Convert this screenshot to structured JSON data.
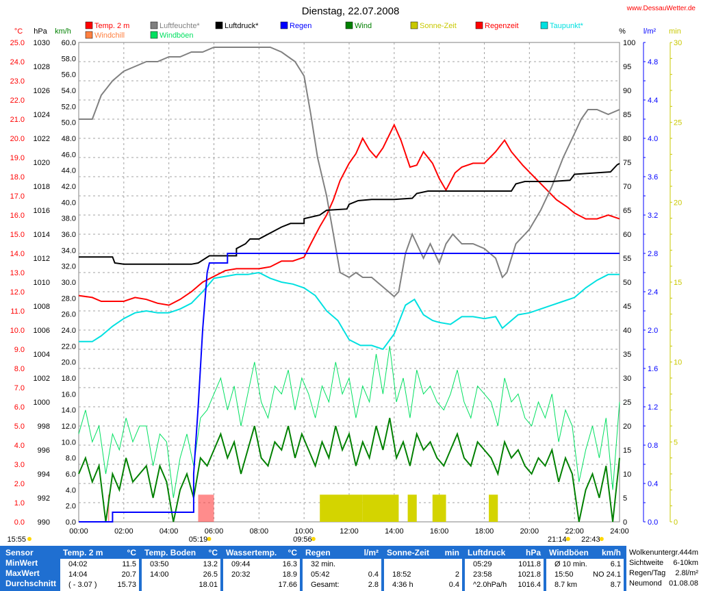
{
  "site": "www.DessauWetter.de",
  "chart_data": {
    "type": "line",
    "title": "Dienstag, 22.07.2008",
    "axes": {
      "temp_c": {
        "label": "°C",
        "min": 0,
        "max": 25,
        "step": 1,
        "color": "#ff0000"
      },
      "hpa": {
        "label": "hPa",
        "min": 990,
        "max": 1030,
        "step": 2,
        "color": "#000000"
      },
      "kmh": {
        "label": "km/h",
        "min": 0,
        "max": 60,
        "step": 2,
        "color": "#008000"
      },
      "pct": {
        "label": "%",
        "min": 0,
        "max": 100,
        "step": 5,
        "color": "#000000"
      },
      "lm2": {
        "label": "l/m²",
        "min": 0,
        "max": 5,
        "step": 0.2,
        "color": "#0000ff"
      },
      "min": {
        "label": "min",
        "min": 0,
        "max": 30,
        "step": 5,
        "color": "#c8c800"
      }
    },
    "x_ticks": [
      "00:00",
      "02:00",
      "04:00",
      "06:00",
      "08:00",
      "10:00",
      "12:00",
      "14:00",
      "16:00",
      "18:00",
      "20:00",
      "22:00",
      "24:00"
    ],
    "legend": [
      {
        "name": "Temp. 2 m",
        "color": "#ff0000"
      },
      {
        "name": "Luftfeuchte*",
        "color": "#808080"
      },
      {
        "name": "Luftdruck*",
        "color": "#000000"
      },
      {
        "name": "Regen",
        "color": "#0000ff"
      },
      {
        "name": "Wind",
        "color": "#008000"
      },
      {
        "name": "Sonne-Zeit",
        "color": "#c8c800"
      },
      {
        "name": "Regenzeit",
        "color": "#ff0000"
      },
      {
        "name": "Taupunkt*",
        "color": "#00e0e0"
      },
      {
        "name": "Windchill",
        "color": "#ff8040"
      },
      {
        "name": "Windböen",
        "color": "#00e060"
      }
    ],
    "series": [
      {
        "name": "Temp. 2 m",
        "axis": "temp_c",
        "color": "#ff0000",
        "x": [
          0,
          0.6,
          1,
          1.5,
          2,
          2.5,
          3,
          3.5,
          4,
          4.5,
          5,
          5.5,
          6,
          6.5,
          7,
          7.5,
          8,
          8.5,
          9,
          9.5,
          10,
          10.3,
          10.7,
          11,
          11.3,
          11.6,
          12,
          12.3,
          12.6,
          12.9,
          13.2,
          13.5,
          14,
          14.3,
          14.7,
          15,
          15.3,
          15.7,
          16,
          16.3,
          16.7,
          17,
          17.5,
          18,
          18.5,
          18.9,
          19.2,
          19.7,
          20.2,
          20.7,
          21.2,
          21.7,
          22,
          22.5,
          23,
          23.5,
          24
        ],
        "y": [
          11.8,
          11.7,
          11.5,
          11.5,
          11.5,
          11.7,
          11.6,
          11.4,
          11.3,
          11.6,
          12.0,
          12.5,
          12.8,
          13.1,
          13.2,
          13.2,
          13.2,
          13.3,
          13.6,
          13.6,
          13.8,
          14.5,
          15.4,
          16,
          16.8,
          17.8,
          18.7,
          19.2,
          20.0,
          19.4,
          19.0,
          19.5,
          20.7,
          19.9,
          18.5,
          18.6,
          19.3,
          18.7,
          17.9,
          17.3,
          18.2,
          18.5,
          18.7,
          18.7,
          19.3,
          19.9,
          19.3,
          18.6,
          18.0,
          17.4,
          16.8,
          16.4,
          16.1,
          15.8,
          15.8,
          16.0,
          15.8
        ]
      },
      {
        "name": "Luftfeuchte*",
        "axis": "pct",
        "color": "#808080",
        "x": [
          0,
          0.6,
          1,
          1.5,
          2,
          2.5,
          3,
          3.5,
          4,
          4.5,
          5,
          5.5,
          6,
          6.5,
          7,
          7.5,
          8,
          8.5,
          9,
          9.3,
          9.6,
          10,
          10.3,
          10.6,
          11,
          11.3,
          11.6,
          12,
          12.3,
          12.6,
          13,
          13.5,
          14,
          14.2,
          14.5,
          14.8,
          15.3,
          15.6,
          16,
          16.3,
          16.6,
          17,
          17.5,
          18,
          18.5,
          18.8,
          19,
          19.4,
          20,
          20.5,
          21,
          21.5,
          22,
          22.3,
          22.6,
          23,
          23.5,
          24
        ],
        "y": [
          84,
          84,
          89,
          92,
          94,
          95,
          96,
          96,
          97,
          97,
          98,
          98,
          99,
          99,
          99,
          99,
          99,
          99,
          98,
          97,
          96,
          93,
          85,
          76,
          68,
          60,
          52,
          51,
          52,
          51,
          51,
          49,
          47,
          48,
          56,
          60,
          55,
          58,
          54,
          58,
          60,
          58,
          58,
          57,
          55,
          51,
          52,
          58,
          61,
          65,
          70,
          76,
          81,
          84,
          86,
          86,
          85,
          86
        ]
      },
      {
        "name": "Luftdruck*",
        "axis": "hpa",
        "color": "#000000",
        "x": [
          0,
          1.5,
          1.6,
          2,
          5,
          5.3,
          5.8,
          7,
          7,
          7.4,
          7.6,
          8,
          8.6,
          9,
          9.4,
          10,
          10,
          10.7,
          11,
          11.9,
          12,
          12.4,
          13,
          14,
          14.8,
          15,
          15.5,
          16,
          19.2,
          19.4,
          19.8,
          21,
          21.8,
          22,
          23.6,
          23.9,
          24
        ],
        "y": [
          1012.1,
          1012.1,
          1011.6,
          1011.5,
          1011.5,
          1011.6,
          1012.2,
          1012.2,
          1012.8,
          1013.2,
          1013.6,
          1013.6,
          1014.2,
          1014.6,
          1014.9,
          1014.9,
          1015.3,
          1015.6,
          1016,
          1016.1,
          1016.5,
          1016.8,
          1016.9,
          1016.9,
          1017.0,
          1017.4,
          1017.6,
          1017.6,
          1017.6,
          1018.2,
          1018.4,
          1018.4,
          1018.5,
          1019,
          1019.2,
          1019.8,
          1019.9
        ]
      },
      {
        "name": "Taupunkt*",
        "axis": "temp_c",
        "color": "#00e0e0",
        "x": [
          0,
          0.6,
          1,
          1.5,
          2,
          2.5,
          3,
          3.5,
          4,
          4.5,
          5,
          5.5,
          6,
          6.5,
          7,
          7.5,
          8,
          8.5,
          9,
          9.5,
          10,
          10.5,
          11,
          11.5,
          12,
          12.5,
          13,
          13.5,
          14,
          14.5,
          14.9,
          15.3,
          15.7,
          16,
          16.5,
          17,
          17.5,
          18,
          18.5,
          18.8,
          19,
          19.5,
          20,
          20.5,
          21,
          21.5,
          22,
          22.5,
          23,
          23.5,
          24
        ],
        "y": [
          9.4,
          9.4,
          9.7,
          10.2,
          10.6,
          10.9,
          11.0,
          10.9,
          10.9,
          11.1,
          11.4,
          12.0,
          12.7,
          12.8,
          12.9,
          12.9,
          13.0,
          12.7,
          12.5,
          12.4,
          12.2,
          11.8,
          11.0,
          10.5,
          9.5,
          9.2,
          9.2,
          9.0,
          9.8,
          11.3,
          11.6,
          10.8,
          10.5,
          10.4,
          10.3,
          10.7,
          10.7,
          10.6,
          10.7,
          10.1,
          10.3,
          10.8,
          10.9,
          11.1,
          11.3,
          11.5,
          11.7,
          12.2,
          12.6,
          12.9,
          12.9
        ]
      },
      {
        "name": "Regen",
        "axis": "lm2",
        "color": "#0000ff",
        "x": [
          0,
          1.5,
          1.5,
          5.1,
          5.1,
          5.3,
          5.5,
          5.7,
          5.8,
          6.0,
          6.6,
          6.6,
          24
        ],
        "y": [
          0,
          0,
          0.1,
          0.1,
          0.5,
          1.2,
          2.0,
          2.6,
          2.7,
          2.7,
          2.7,
          2.8,
          2.8
        ]
      }
    ],
    "wind": {
      "x": [
        0,
        0.3,
        0.6,
        0.9,
        1.2,
        1.5,
        1.8,
        2.1,
        2.4,
        2.7,
        3,
        3.3,
        3.6,
        3.9,
        4.2,
        4.5,
        4.8,
        5.1,
        5.4,
        5.7,
        6,
        6.3,
        6.6,
        6.9,
        7.2,
        7.5,
        7.8,
        8.1,
        8.4,
        8.7,
        9,
        9.3,
        9.6,
        9.9,
        10.2,
        10.5,
        10.8,
        11.1,
        11.4,
        11.7,
        12,
        12.3,
        12.6,
        12.9,
        13.2,
        13.5,
        13.8,
        14.1,
        14.4,
        14.7,
        15,
        15.3,
        15.6,
        15.9,
        16.2,
        16.5,
        16.8,
        17.1,
        17.4,
        17.7,
        18,
        18.3,
        18.6,
        18.9,
        19.2,
        19.5,
        19.8,
        20.1,
        20.4,
        20.7,
        21,
        21.3,
        21.6,
        21.9,
        22.2,
        22.5,
        22.8,
        23.1,
        23.4,
        23.7,
        24
      ],
      "wind": [
        6,
        8,
        5,
        7,
        0,
        6,
        4,
        8,
        5,
        6,
        7,
        3,
        7,
        5,
        0,
        4,
        6,
        3,
        8,
        7,
        9,
        11,
        8,
        10,
        6,
        9,
        12,
        8,
        7,
        10,
        9,
        12,
        8,
        11,
        9,
        7,
        10,
        8,
        12,
        9,
        11,
        7,
        10,
        8,
        12,
        9,
        13,
        8,
        10,
        7,
        11,
        9,
        10,
        8,
        7,
        9,
        11,
        8,
        7,
        10,
        9,
        8,
        6,
        10,
        8,
        9,
        7,
        6,
        8,
        7,
        9,
        5,
        8,
        6,
        0,
        4,
        6,
        3,
        7,
        0,
        8
      ],
      "gust": [
        11,
        14,
        10,
        12,
        6,
        11,
        9,
        13,
        10,
        12,
        12,
        7,
        11,
        10,
        3,
        8,
        11,
        7,
        13,
        14,
        16,
        18,
        14,
        17,
        12,
        16,
        20,
        15,
        13,
        17,
        16,
        19,
        14,
        18,
        16,
        13,
        17,
        15,
        20,
        16,
        18,
        13,
        17,
        15,
        21,
        16,
        22,
        15,
        18,
        13,
        19,
        16,
        17,
        15,
        14,
        16,
        19,
        15,
        13,
        17,
        16,
        15,
        12,
        18,
        15,
        16,
        13,
        12,
        15,
        13,
        16,
        10,
        14,
        12,
        5,
        9,
        12,
        8,
        13,
        4,
        15
      ]
    },
    "sun_intervals": [
      [
        10.7,
        12.6
      ],
      [
        12.6,
        14.2
      ],
      [
        14.6,
        15.0
      ],
      [
        15.7,
        16.3
      ],
      [
        18.2,
        18.6
      ]
    ],
    "rain_intervals": [
      [
        1.3,
        1.35
      ],
      [
        5.3,
        6.0
      ]
    ],
    "time_labels": [
      {
        "t": 5.3,
        "text": "05:19"
      },
      {
        "t": 9.93,
        "text": "09:56"
      },
      {
        "t": 21.23,
        "text": "21:14"
      },
      {
        "t": 22.72,
        "text": "22:43"
      },
      {
        "t": 0,
        "text": "15:55"
      }
    ]
  },
  "stats": {
    "row_labels": [
      "Sensor",
      "MinWert",
      "MaxWert",
      "Durchschnitt"
    ],
    "sections": [
      {
        "title": "Temp. 2 m",
        "unit": "°C",
        "rows": [
          [
            "04:02",
            "11.5"
          ],
          [
            "14:04",
            "20.7"
          ],
          [
            "( - 3.07 )",
            "15.73"
          ]
        ]
      },
      {
        "title": "Temp. Boden",
        "unit": "°C",
        "rows": [
          [
            "03:50",
            "13.2"
          ],
          [
            "14:00",
            "26.5"
          ],
          [
            "",
            "18.01"
          ]
        ]
      },
      {
        "title": "Wassertemp.",
        "unit": "°C",
        "rows": [
          [
            "09:44",
            "16.3"
          ],
          [
            "20:32",
            "18.9"
          ],
          [
            "",
            "17.66"
          ]
        ]
      },
      {
        "title": "Regen",
        "unit": "l/m²",
        "rows": [
          [
            "32 min.",
            ""
          ],
          [
            "05:42",
            "0.4"
          ],
          [
            "Gesamt:",
            "2.8"
          ]
        ]
      },
      {
        "title": "Sonne-Zeit",
        "unit": "min",
        "rows": [
          [
            "",
            ""
          ],
          [
            "18:52",
            "2"
          ],
          [
            "4:36 h",
            "0.4"
          ]
        ]
      },
      {
        "title": "Luftdruck",
        "unit": "hPa",
        "rows": [
          [
            "05:29",
            "1011.8"
          ],
          [
            "23:58",
            "1021.8"
          ],
          [
            "^2.0hPa/h",
            "1016.4"
          ]
        ]
      },
      {
        "title": "Windböen",
        "unit": "km/h",
        "rows": [
          [
            "Ø 10 min.",
            "6.1"
          ],
          [
            "15:50",
            "NO 24.1"
          ],
          [
            "8.7 km",
            "8.7"
          ]
        ]
      }
    ],
    "info": [
      [
        "Wolkenuntergr.",
        "444m"
      ],
      [
        "Sichtweite",
        "6-10km"
      ],
      [
        "Regen/Tag",
        "2.8l/m²"
      ],
      [
        "Neumond",
        "01.08.08"
      ]
    ]
  }
}
